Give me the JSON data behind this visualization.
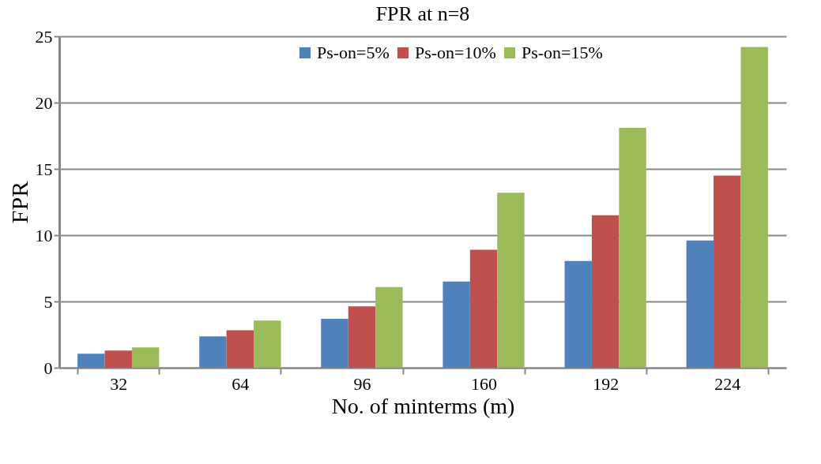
{
  "chart_data": {
    "type": "bar",
    "title": "FPR at n=8",
    "xlabel": "No. of minterms (m)",
    "ylabel": "FPR",
    "categories": [
      "32",
      "64",
      "96",
      "160",
      "192",
      "224"
    ],
    "series": [
      {
        "name": "Ps-on=5%",
        "color": "#4f81bd",
        "values": [
          1.06,
          2.36,
          3.69,
          6.5,
          8.05,
          9.6
        ]
      },
      {
        "name": "Ps-on=10%",
        "color": "#c0504d",
        "values": [
          1.3,
          2.83,
          4.63,
          8.9,
          11.5,
          14.5
        ]
      },
      {
        "name": "Ps-on=15%",
        "color": "#9bbb59",
        "values": [
          1.54,
          3.55,
          6.09,
          13.2,
          18.1,
          24.2
        ]
      }
    ],
    "ylim": [
      0,
      25
    ],
    "yticks": [
      0,
      5,
      10,
      15,
      20,
      25
    ],
    "grid": "y",
    "legend": "top"
  }
}
